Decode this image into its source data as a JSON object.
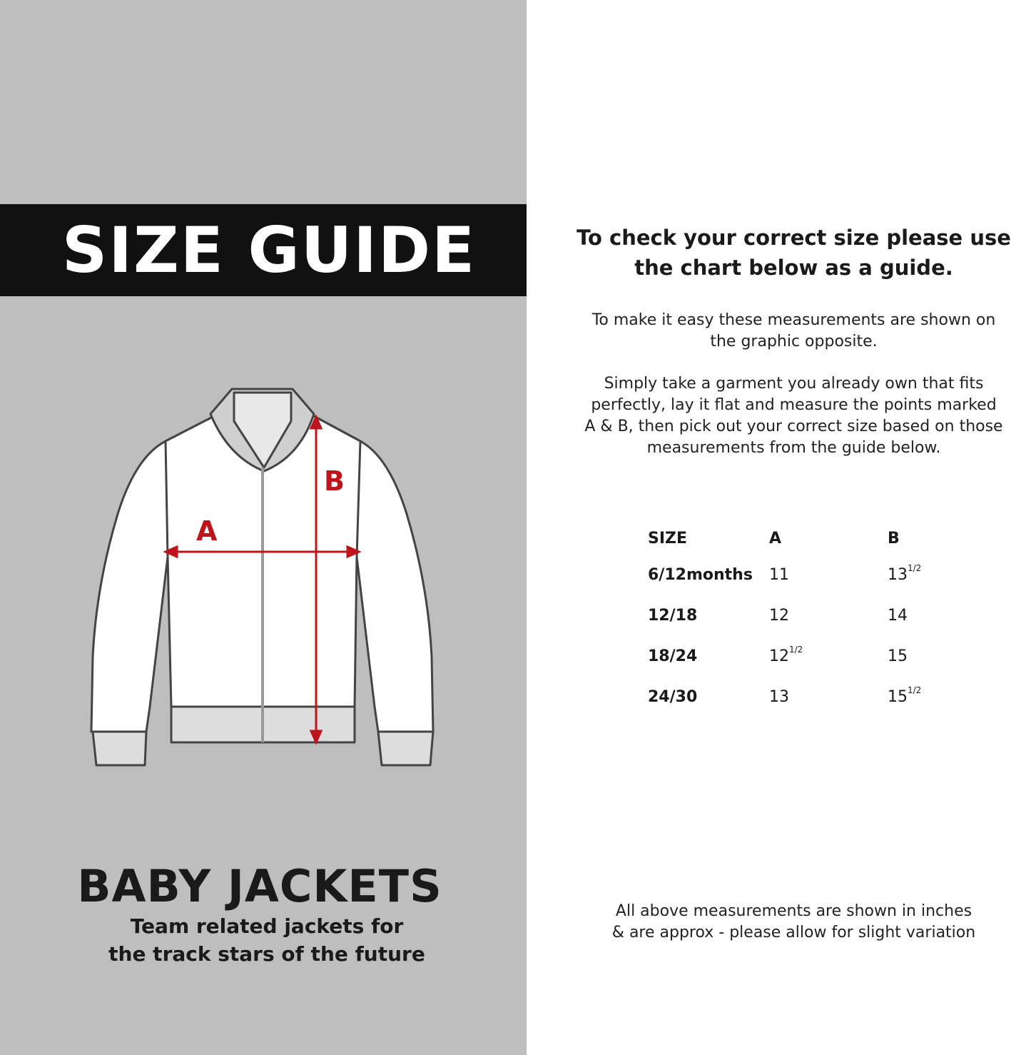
{
  "left": {
    "title": "SIZE GUIDE",
    "product": "BABY JACKETS",
    "tagline_1": "Team related jackets for",
    "tagline_2": "the track stars of the future",
    "diagram": {
      "label_a": "A",
      "label_b": "B",
      "accent": "#c0141c"
    }
  },
  "right": {
    "heading_1": "To check your correct size please use",
    "heading_2": "the chart below as a guide.",
    "para1_1": "To make it easy these measurements are shown on",
    "para1_2": "the graphic opposite.",
    "para2_1": "Simply take a garment you already own that fits",
    "para2_2": "perfectly, lay it flat and measure the points marked",
    "para2_3": "A & B, then pick out your correct size based on those",
    "para2_4": "measurements from the guide below.",
    "footnote_1": "All above measurements are shown in inches",
    "footnote_2": "& are approx - please allow for slight variation"
  },
  "table": {
    "headers": [
      "SIZE",
      "A",
      "B"
    ],
    "rows": [
      {
        "size": "6/12months",
        "a": "11",
        "a_frac": "",
        "b": "13",
        "b_frac": "1/2"
      },
      {
        "size": "12/18",
        "a": "12",
        "a_frac": "",
        "b": "14",
        "b_frac": ""
      },
      {
        "size": "18/24",
        "a": "12",
        "a_frac": "1/2",
        "b": "15",
        "b_frac": ""
      },
      {
        "size": "24/30",
        "a": "13",
        "a_frac": "",
        "b": "15",
        "b_frac": "1/2"
      }
    ]
  }
}
